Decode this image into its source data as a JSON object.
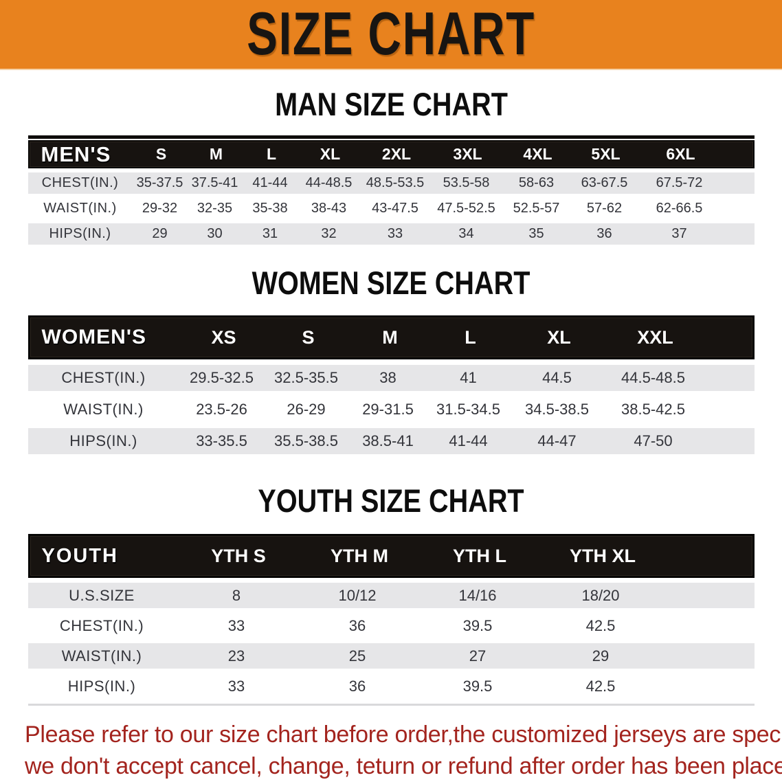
{
  "banner": {
    "title": "SIZE CHART"
  },
  "theme": {
    "banner_bg": "#E8821E",
    "header_bar": "#171310",
    "row_gray": "#E6E6E8",
    "note_red": "#A3241E",
    "text_dark": "#33343A"
  },
  "sections": [
    {
      "title": "MAN SIZE CHART",
      "table": {
        "label": "MEN'S",
        "columns": [
          "S",
          "M",
          "L",
          "XL",
          "2XL",
          "3XL",
          "4XL",
          "5XL",
          "6XL"
        ],
        "rows": [
          {
            "label": "CHEST(IN.)",
            "values": [
              "35-37.5",
              "37.5-41",
              "41-44",
              "44-48.5",
              "48.5-53.5",
              "53.5-58",
              "58-63",
              "63-67.5",
              "67.5-72"
            ]
          },
          {
            "label": "WAIST(IN.)",
            "values": [
              "29-32",
              "32-35",
              "35-38",
              "38-43",
              "43-47.5",
              "47.5-52.5",
              "52.5-57",
              "57-62",
              "62-66.5"
            ]
          },
          {
            "label": "HIPS(IN.)",
            "values": [
              "29",
              "30",
              "31",
              "32",
              "33",
              "34",
              "35",
              "36",
              "37"
            ]
          }
        ]
      }
    },
    {
      "title": "WOMEN SIZE CHART",
      "table": {
        "label": "WOMEN'S",
        "columns": [
          "XS",
          "S",
          "M",
          "L",
          "XL",
          "XXL"
        ],
        "rows": [
          {
            "label": "CHEST(IN.)",
            "values": [
              "29.5-32.5",
              "32.5-35.5",
              "38",
              "41",
              "44.5",
              "44.5-48.5"
            ]
          },
          {
            "label": "WAIST(IN.)",
            "values": [
              "23.5-26",
              "26-29",
              "29-31.5",
              "31.5-34.5",
              "34.5-38.5",
              "38.5-42.5"
            ]
          },
          {
            "label": "HIPS(IN.)",
            "values": [
              "33-35.5",
              "35.5-38.5",
              "38.5-41",
              "41-44",
              "44-47",
              "47-50"
            ]
          }
        ]
      }
    },
    {
      "title": "YOUTH SIZE CHART",
      "table": {
        "label": "YOUTH",
        "columns": [
          "YTH S",
          "YTH M",
          "YTH L",
          "YTH XL"
        ],
        "rows": [
          {
            "label": "U.S.SIZE",
            "values": [
              "8",
              "10/12",
              "14/16",
              "18/20"
            ]
          },
          {
            "label": "CHEST(IN.)",
            "values": [
              "33",
              "36",
              "39.5",
              "42.5"
            ]
          },
          {
            "label": "WAIST(IN.)",
            "values": [
              "23",
              "25",
              "27",
              "29"
            ]
          },
          {
            "label": "HIPS(IN.)",
            "values": [
              "33",
              "36",
              "39.5",
              "42.5"
            ]
          }
        ]
      }
    }
  ],
  "note": {
    "lines": [
      "Please refer to our size chart before order,the customized jerseys are special products,",
      "we don't accept cancel, change, teturn or refund after order has been placed!"
    ]
  }
}
